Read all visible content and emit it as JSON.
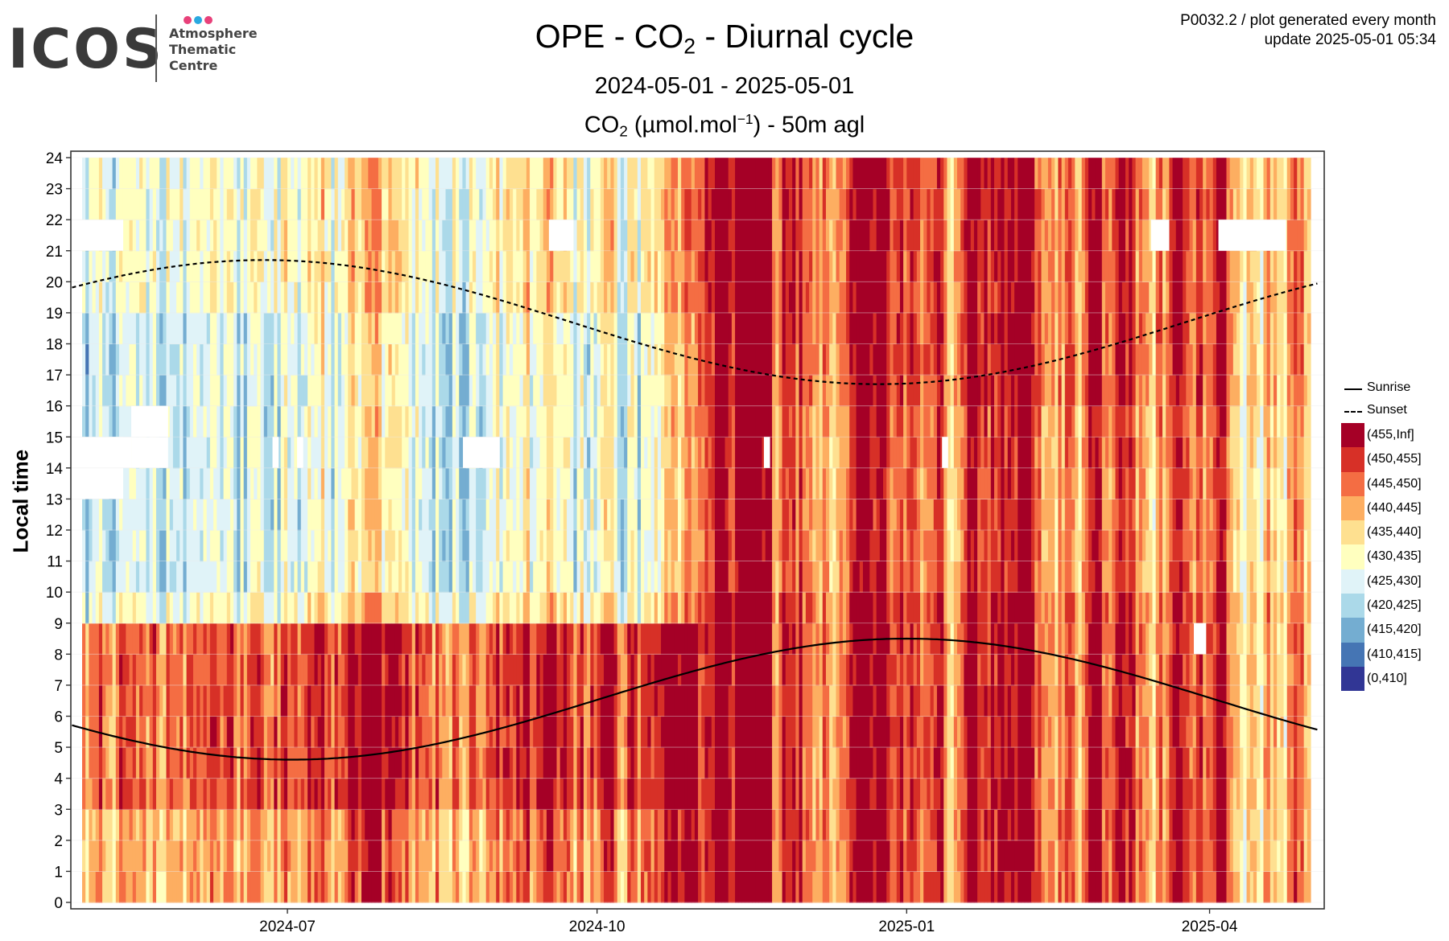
{
  "logo": {
    "wordmark": "ICOS",
    "lines": [
      "Atmosphere",
      "Thematic",
      "Centre"
    ],
    "dot_colors": [
      "#e8417a",
      "#2aa9e0",
      "#e8417a"
    ]
  },
  "header": {
    "code_line": "P0032.2 / plot generated every month",
    "update_line": "update  2025-05-01 05:34"
  },
  "title": {
    "main_prefix": "OPE - CO",
    "main_sub": "2",
    "main_suffix": " - Diurnal cycle",
    "period": "2024-05-01 - 2025-05-01",
    "var_prefix": "CO",
    "var_sub": "2",
    "var_unit_start": " (µmol.mol",
    "var_unit_sup": "−1",
    "var_suffix": ") - 50m agl"
  },
  "chart_data": {
    "type": "heatmap",
    "x_range": [
      "2024-05-01",
      "2025-05-01"
    ],
    "x_ticks": [
      "2024-07",
      "2024-10",
      "2025-01",
      "2025-04"
    ],
    "ylabel": "Local time",
    "y_ticks": [
      "0",
      "1",
      "2",
      "3",
      "4",
      "5",
      "6",
      "7",
      "8",
      "9",
      "10",
      "11",
      "12",
      "13",
      "14",
      "15",
      "16",
      "17",
      "18",
      "19",
      "20",
      "21",
      "22",
      "23",
      "24"
    ],
    "ylim": [
      0,
      24
    ],
    "grid": true,
    "legend_position": "right",
    "color_bins": [
      {
        "label": "(455,Inf]",
        "color": "#a50026"
      },
      {
        "label": "(450,455]",
        "color": "#d73027"
      },
      {
        "label": "(445,450]",
        "color": "#f46d43"
      },
      {
        "label": "(440,445]",
        "color": "#fdae61"
      },
      {
        "label": "(435,440]",
        "color": "#fee090"
      },
      {
        "label": "(430,435]",
        "color": "#ffffbf"
      },
      {
        "label": "(425,430]",
        "color": "#e0f3f8"
      },
      {
        "label": "(420,425]",
        "color": "#abd9e9"
      },
      {
        "label": "(415,420]",
        "color": "#74add1"
      },
      {
        "label": "(410,415]",
        "color": "#4575b4"
      },
      {
        "label": "(0,410]",
        "color": "#313695"
      }
    ],
    "lines": [
      {
        "name": "Sunrise",
        "style": "solid",
        "min_hour": 4.6,
        "min_date": "2024-06-21",
        "max_hour": 8.5,
        "max_date": "2025-01-01"
      },
      {
        "name": "Sunset",
        "style": "dashed",
        "max_hour": 20.7,
        "max_date": "2024-06-24",
        "min_hour": 16.7,
        "min_date": "2024-12-12"
      }
    ]
  }
}
